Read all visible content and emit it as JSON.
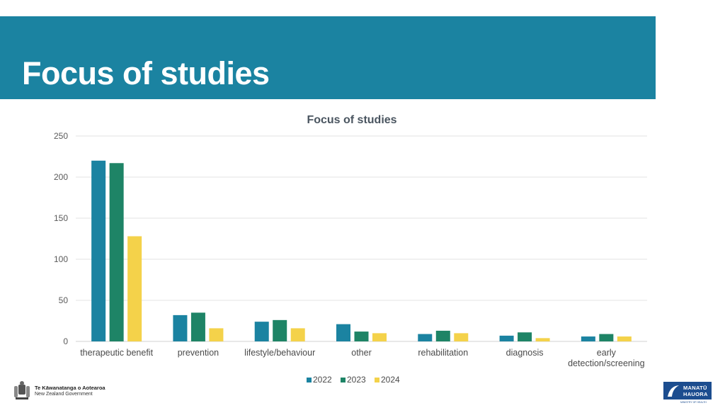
{
  "slide": {
    "title": "Focus of studies",
    "colors": {
      "banner": "#1b83a1",
      "title_text": "#ffffff"
    }
  },
  "chart_data": {
    "type": "bar",
    "title": "Focus of studies",
    "categories": [
      "therapeutic benefit",
      "prevention",
      "lifestyle/behaviour",
      "other",
      "rehabilitation",
      "diagnosis",
      "early detection/screening"
    ],
    "category_lines": [
      [
        "therapeutic benefit"
      ],
      [
        "prevention"
      ],
      [
        "lifestyle/behaviour"
      ],
      [
        "other"
      ],
      [
        "rehabilitation"
      ],
      [
        "diagnosis"
      ],
      [
        "early",
        "detection/screening"
      ]
    ],
    "series": [
      {
        "name": "2022",
        "color": "#1b83a1",
        "values": [
          220,
          32,
          24,
          21,
          9,
          7,
          6
        ]
      },
      {
        "name": "2023",
        "color": "#1e8466",
        "values": [
          217,
          35,
          26,
          12,
          13,
          11,
          9
        ]
      },
      {
        "name": "2024",
        "color": "#f4d24a",
        "values": [
          128,
          16,
          16,
          10,
          10,
          4,
          6
        ]
      }
    ],
    "ylim": [
      0,
      250
    ],
    "yticks": [
      0,
      50,
      100,
      150,
      200,
      250
    ],
    "xlabel": "",
    "ylabel": "",
    "grid": true,
    "legend": "bottom-center"
  },
  "footer": {
    "left_logo": {
      "icon": "nz-coat-of-arms-icon",
      "line1": "Te Kāwanatanga o Aotearoa",
      "line2": "New Zealand Government"
    },
    "right_logo": {
      "icon": "manatu-hauora-koru-icon",
      "line1": "MANATŪ",
      "line2": "HAUORA",
      "sub": "MINISTRY OF HEALTH"
    }
  }
}
